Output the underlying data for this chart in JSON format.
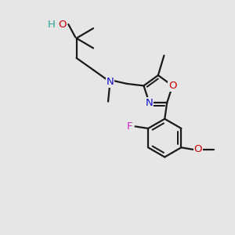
{
  "bg_color": "#e6e6e6",
  "bond_color": "#1a1a1a",
  "bond_width": 1.6,
  "dbo": 0.012,
  "atoms": {
    "H": {
      "color": "#2aa198",
      "size": 9.5
    },
    "O": {
      "color": "#cc0000",
      "size": 9.5
    },
    "N": {
      "color": "#1111cc",
      "size": 9.5
    },
    "F": {
      "color": "#cc22cc",
      "size": 9.5
    },
    "Om": {
      "color": "#cc0000",
      "size": 9.5
    }
  }
}
